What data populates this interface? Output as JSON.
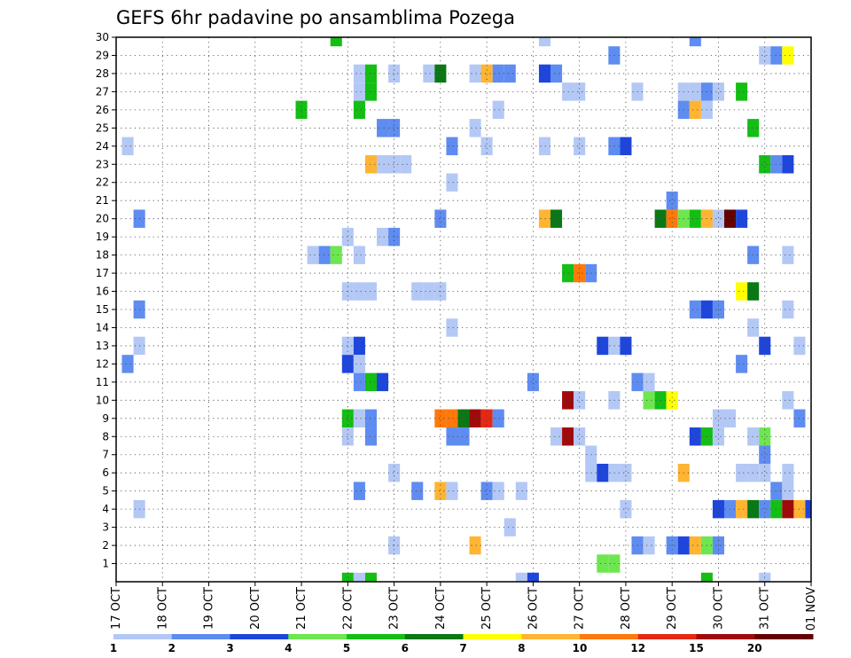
{
  "chart_data": {
    "type": "heatmap",
    "title": "GEFS 6hr padavine po ansamblima Pozega",
    "xlabel": "",
    "ylabel": "",
    "x_ticks": [
      "17 OCT",
      "18 OCT",
      "19 OCT",
      "20 OCT",
      "21 OCT",
      "22 OCT",
      "23 OCT",
      "24 OCT",
      "25 OCT",
      "26 OCT",
      "27 OCT",
      "28 OCT",
      "29 OCT",
      "30 OCT",
      "31 OCT",
      "01 NOV"
    ],
    "xlim": [
      0,
      60
    ],
    "y_ticks": [
      1,
      2,
      3,
      4,
      5,
      6,
      7,
      8,
      9,
      10,
      11,
      12,
      13,
      14,
      15,
      16,
      17,
      18,
      19,
      20,
      21,
      22,
      23,
      24,
      25,
      26,
      27,
      28,
      29,
      30
    ],
    "ylim": [
      0,
      30
    ],
    "grid": true,
    "legend": {
      "position": "bottom",
      "levels": [
        "1",
        "2",
        "3",
        "4",
        "5",
        "6",
        "7",
        "8",
        "10",
        "12",
        "15",
        "20"
      ],
      "colors": [
        "#b4c8f5",
        "#5f8cf0",
        "#1e46dc",
        "#6ee650",
        "#14be14",
        "#0a7814",
        "#ffff00",
        "#ffb432",
        "#ff780a",
        "#e62814",
        "#a00a0a",
        "#640000"
      ]
    },
    "cells": [
      [
        20,
        30,
        5
      ],
      [
        38,
        30,
        1
      ],
      [
        51,
        30,
        2
      ],
      [
        44,
        29,
        2
      ],
      [
        57,
        29,
        1
      ],
      [
        58,
        29,
        2
      ],
      [
        59,
        29,
        7
      ],
      [
        22,
        28,
        1
      ],
      [
        23,
        28,
        5
      ],
      [
        25,
        28,
        1
      ],
      [
        28,
        28,
        1
      ],
      [
        29,
        28,
        6
      ],
      [
        32,
        28,
        1
      ],
      [
        33,
        28,
        8
      ],
      [
        34,
        28,
        2
      ],
      [
        35,
        28,
        2
      ],
      [
        38,
        28,
        3
      ],
      [
        39,
        28,
        2
      ],
      [
        22,
        27,
        1
      ],
      [
        23,
        27,
        5
      ],
      [
        40,
        27,
        1
      ],
      [
        41,
        27,
        1
      ],
      [
        46,
        27,
        1
      ],
      [
        50,
        27,
        1
      ],
      [
        51,
        27,
        1
      ],
      [
        52,
        27,
        2
      ],
      [
        53,
        27,
        1
      ],
      [
        55,
        27,
        5
      ],
      [
        17,
        26,
        5
      ],
      [
        22,
        26,
        5
      ],
      [
        34,
        26,
        1
      ],
      [
        50,
        26,
        2
      ],
      [
        51,
        26,
        8
      ],
      [
        52,
        26,
        1
      ],
      [
        24,
        25,
        2
      ],
      [
        25,
        25,
        2
      ],
      [
        32,
        25,
        1
      ],
      [
        56,
        25,
        5
      ],
      [
        2,
        24,
        1
      ],
      [
        30,
        24,
        2
      ],
      [
        33,
        24,
        1
      ],
      [
        38,
        24,
        1
      ],
      [
        41,
        24,
        1
      ],
      [
        44,
        24,
        2
      ],
      [
        45,
        24,
        3
      ],
      [
        23,
        23,
        8
      ],
      [
        24,
        23,
        1
      ],
      [
        25,
        23,
        1
      ],
      [
        26,
        23,
        1
      ],
      [
        57,
        23,
        5
      ],
      [
        58,
        23,
        2
      ],
      [
        59,
        23,
        3
      ],
      [
        30,
        22,
        1
      ],
      [
        49,
        21,
        2
      ],
      [
        3,
        20,
        2
      ],
      [
        29,
        20,
        2
      ],
      [
        38,
        20,
        8
      ],
      [
        39,
        20,
        6
      ],
      [
        48,
        20,
        6
      ],
      [
        49,
        20,
        9
      ],
      [
        50,
        20,
        4
      ],
      [
        51,
        20,
        5
      ],
      [
        52,
        20,
        8
      ],
      [
        53,
        20,
        1
      ],
      [
        54,
        20,
        12
      ],
      [
        55,
        20,
        3
      ],
      [
        21,
        19,
        1
      ],
      [
        24,
        19,
        1
      ],
      [
        25,
        19,
        2
      ],
      [
        18,
        18,
        1
      ],
      [
        19,
        18,
        2
      ],
      [
        20,
        18,
        4
      ],
      [
        22,
        18,
        1
      ],
      [
        56,
        18,
        2
      ],
      [
        59,
        18,
        1
      ],
      [
        40,
        17,
        5
      ],
      [
        41,
        17,
        9
      ],
      [
        42,
        17,
        2
      ],
      [
        21,
        16,
        1
      ],
      [
        22,
        16,
        1
      ],
      [
        23,
        16,
        1
      ],
      [
        27,
        16,
        1
      ],
      [
        28,
        16,
        1
      ],
      [
        29,
        16,
        1
      ],
      [
        55,
        16,
        7
      ],
      [
        56,
        16,
        6
      ],
      [
        3,
        15,
        2
      ],
      [
        51,
        15,
        2
      ],
      [
        52,
        15,
        3
      ],
      [
        53,
        15,
        2
      ],
      [
        59,
        15,
        1
      ],
      [
        30,
        14,
        1
      ],
      [
        56,
        14,
        1
      ],
      [
        3,
        13,
        1
      ],
      [
        21,
        13,
        1
      ],
      [
        22,
        13,
        3
      ],
      [
        43,
        13,
        3
      ],
      [
        44,
        13,
        1
      ],
      [
        45,
        13,
        3
      ],
      [
        57,
        13,
        3
      ],
      [
        60,
        13,
        1
      ],
      [
        2,
        12,
        2
      ],
      [
        21,
        12,
        3
      ],
      [
        22,
        12,
        1
      ],
      [
        55,
        12,
        2
      ],
      [
        22,
        11,
        2
      ],
      [
        23,
        11,
        5
      ],
      [
        24,
        11,
        3
      ],
      [
        37,
        11,
        2
      ],
      [
        46,
        11,
        2
      ],
      [
        47,
        11,
        1
      ],
      [
        40,
        10,
        11
      ],
      [
        41,
        10,
        1
      ],
      [
        44,
        10,
        1
      ],
      [
        47,
        10,
        4
      ],
      [
        48,
        10,
        5
      ],
      [
        49,
        10,
        7
      ],
      [
        59,
        10,
        1
      ],
      [
        21,
        9,
        5
      ],
      [
        22,
        9,
        1
      ],
      [
        23,
        9,
        2
      ],
      [
        29,
        9,
        9
      ],
      [
        30,
        9,
        9
      ],
      [
        31,
        9,
        6
      ],
      [
        32,
        9,
        11
      ],
      [
        33,
        9,
        10
      ],
      [
        34,
        9,
        2
      ],
      [
        53,
        9,
        1
      ],
      [
        54,
        9,
        1
      ],
      [
        60,
        9,
        2
      ],
      [
        21,
        8,
        1
      ],
      [
        23,
        8,
        2
      ],
      [
        30,
        8,
        2
      ],
      [
        31,
        8,
        2
      ],
      [
        39,
        8,
        1
      ],
      [
        40,
        8,
        11
      ],
      [
        41,
        8,
        1
      ],
      [
        51,
        8,
        3
      ],
      [
        52,
        8,
        5
      ],
      [
        53,
        8,
        1
      ],
      [
        56,
        8,
        1
      ],
      [
        57,
        8,
        4
      ],
      [
        42,
        7,
        1
      ],
      [
        57,
        7,
        2
      ],
      [
        25,
        6,
        1
      ],
      [
        42,
        6,
        1
      ],
      [
        43,
        6,
        3
      ],
      [
        44,
        6,
        1
      ],
      [
        45,
        6,
        1
      ],
      [
        50,
        6,
        8
      ],
      [
        55,
        6,
        1
      ],
      [
        56,
        6,
        1
      ],
      [
        57,
        6,
        1
      ],
      [
        59,
        6,
        1
      ],
      [
        22,
        5,
        2
      ],
      [
        27,
        5,
        2
      ],
      [
        29,
        5,
        8
      ],
      [
        30,
        5,
        1
      ],
      [
        33,
        5,
        2
      ],
      [
        34,
        5,
        1
      ],
      [
        36,
        5,
        1
      ],
      [
        58,
        5,
        2
      ],
      [
        59,
        5,
        1
      ],
      [
        3,
        4,
        1
      ],
      [
        45,
        4,
        1
      ],
      [
        53,
        4,
        3
      ],
      [
        54,
        4,
        2
      ],
      [
        55,
        4,
        8
      ],
      [
        56,
        4,
        6
      ],
      [
        57,
        4,
        2
      ],
      [
        58,
        4,
        5
      ],
      [
        59,
        4,
        11
      ],
      [
        60,
        4,
        8
      ],
      [
        61,
        4,
        3
      ],
      [
        35,
        3,
        1
      ],
      [
        25,
        2,
        1
      ],
      [
        32,
        2,
        8
      ],
      [
        46,
        2,
        2
      ],
      [
        47,
        2,
        1
      ],
      [
        49,
        2,
        2
      ],
      [
        50,
        2,
        3
      ],
      [
        51,
        2,
        8
      ],
      [
        52,
        2,
        4
      ],
      [
        53,
        2,
        2
      ],
      [
        43,
        1,
        4
      ],
      [
        44,
        1,
        4
      ],
      [
        21,
        0,
        5
      ],
      [
        22,
        0,
        1
      ],
      [
        23,
        0,
        5
      ],
      [
        36,
        0,
        1
      ],
      [
        37,
        0,
        3
      ],
      [
        52,
        0,
        5
      ],
      [
        57,
        0,
        1
      ]
    ]
  }
}
